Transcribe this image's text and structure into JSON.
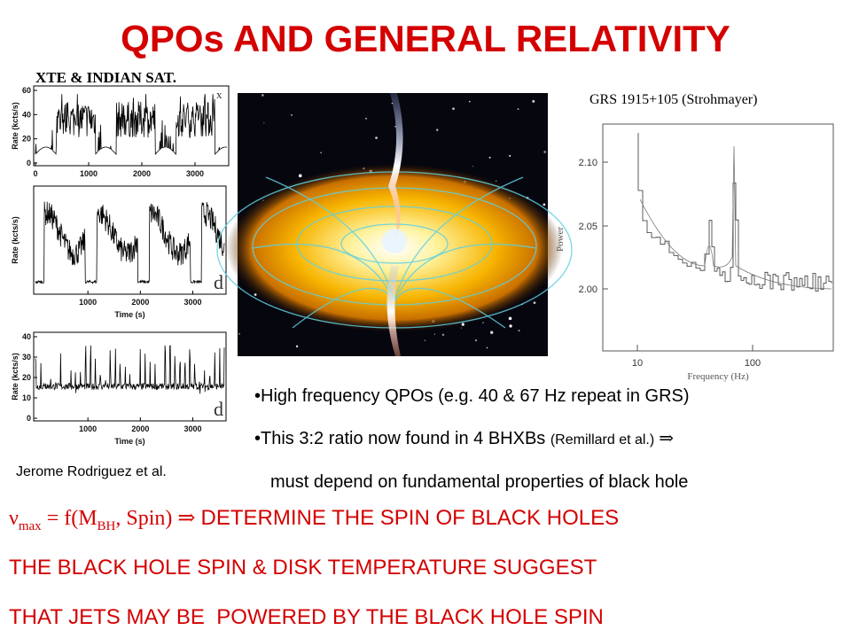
{
  "title": "QPOs AND GENERAL RELATIVITY",
  "light_curves": {
    "caption": "XTE & INDIAN SAT.",
    "credit": "Jerome Rodriguez et al.",
    "panels": [
      {
        "ylabel": "Rate (kcts/s)",
        "yticks": [
          "0",
          "20",
          "40",
          "60"
        ],
        "xticks": [
          "0",
          "1000",
          "2000",
          "3000"
        ],
        "letter": "x"
      },
      {
        "ylabel": "Rate (kcts/s)",
        "xticks": [
          "1000",
          "2000",
          "3000"
        ],
        "xlabel": "Time (s)",
        "letter": "d"
      },
      {
        "ylabel": "Rate (kcts/s)",
        "yticks": [
          "0",
          "10",
          "20",
          "30",
          "40"
        ],
        "xticks": [
          "1000",
          "2000",
          "3000"
        ],
        "xlabel": "Time (s)",
        "letter": "d"
      }
    ]
  },
  "power_spectrum": {
    "caption": "GRS 1915+105 (Strohmayer)",
    "ylabel": "Power",
    "xlabel": "Frequency (Hz)",
    "yticks": [
      "2.10",
      "2.05",
      "2.00"
    ],
    "xticks": [
      "10",
      "100"
    ]
  },
  "bullets": [
    {
      "text": "•High frequency QPOs (e.g. 40 & 67 Hz repeat in GRS)"
    },
    {
      "text": "•This 3:2 ratio now found in 4 BHXBs ",
      "ref": "(Remillard et al.)",
      "arrow": " ⇒",
      "continuation": "must depend on fundamental properties of black hole"
    }
  ],
  "conclusions": [
    {
      "nu": "ν",
      "sub1": "max",
      "mid": " = f(M",
      "sub2": "BH",
      "end": ", Spin) ⇒ ",
      "claim": "DETERMINE THE SPIN OF BLACK HOLES"
    },
    {
      "text": "THE BLACK HOLE SPIN & DISK TEMPERATURE SUGGEST"
    },
    {
      "text": "THAT JETS MAY BE  POWERED BY THE BLACK HOLE SPIN"
    }
  ]
}
